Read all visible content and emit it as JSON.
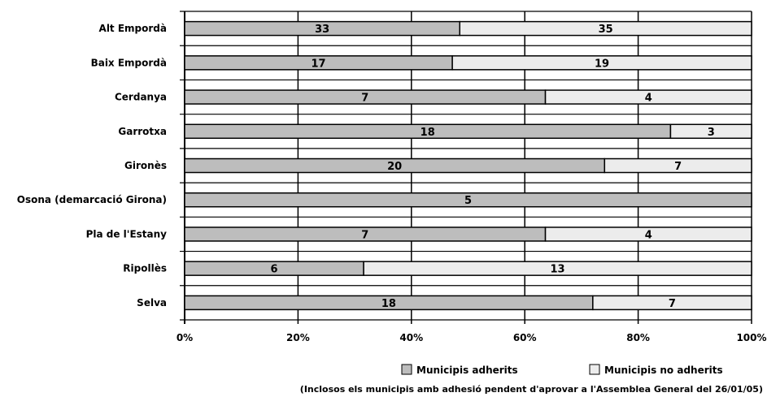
{
  "chart_data": {
    "type": "bar",
    "orientation": "horizontal",
    "stacked": "percent",
    "categories": [
      "Alt Empordà",
      "Baix Empordà",
      "Cerdanya",
      "Garrotxa",
      "Gironès",
      "Osona (demarcació Girona)",
      "Pla de l'Estany",
      "Ripollès",
      "Selva"
    ],
    "series": [
      {
        "name": "Municipis adherits",
        "values": [
          33,
          17,
          7,
          18,
          20,
          5,
          7,
          6,
          18
        ],
        "color": "#bdbdbd"
      },
      {
        "name": "Municipis no adherits",
        "values": [
          35,
          19,
          4,
          3,
          7,
          0,
          4,
          13,
          7
        ],
        "color": "#ececec"
      }
    ],
    "x_ticks": [
      "0%",
      "20%",
      "40%",
      "60%",
      "80%",
      "100%"
    ],
    "xlim": [
      0,
      100
    ],
    "grid": true,
    "legend": "bottom-right",
    "note": "(Inclosos els municipis amb adhesió pendent d'aprovar a l'Assemblea General del 26/01/05)"
  }
}
